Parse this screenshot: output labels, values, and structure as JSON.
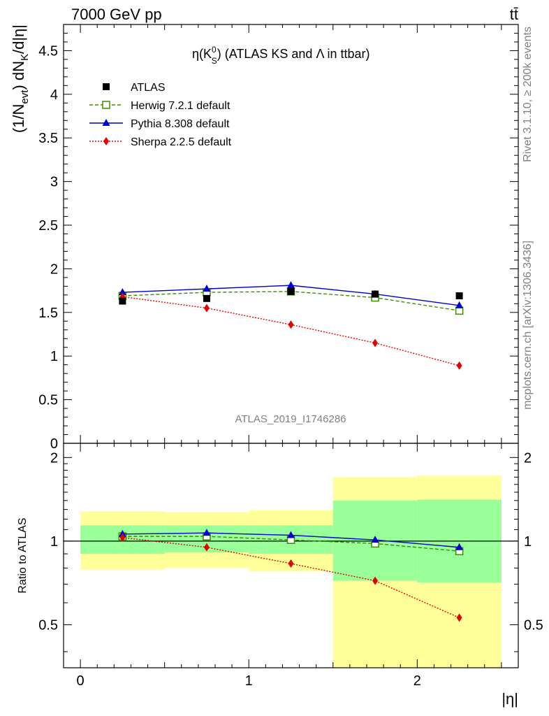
{
  "header": {
    "left": "7000 GeV pp",
    "right": "tt̄"
  },
  "side_labels": {
    "rivet": "Rivet 3.1.10, ≥ 200k events",
    "mcplots": "mcplots.cern.ch [arXiv:1306.3436]"
  },
  "chart_data": [
    {
      "type": "line",
      "title": "η(K⁰S) (ATLAS KS and Λ in ttbar)",
      "title_parts": {
        "pre": "η(K",
        "sup": "0",
        "sub": "S",
        "post": ") (ATLAS KS and Λ in ttbar)"
      },
      "ylabel": "(1/N_evt) dN_K/d|η|",
      "ylabel_parts": {
        "a": "(1/N",
        "a_sub": "evt",
        "b": ") dN",
        "b_sub": "K",
        "c": "/d|η|"
      },
      "xlabel": "",
      "analysis_tag": "ATLAS_2019_I1746286",
      "xlim": [
        -0.1,
        2.6
      ],
      "ylim": [
        0,
        4.8
      ],
      "yticks": [
        "0",
        "0.5",
        "1",
        "1.5",
        "2",
        "2.5",
        "3",
        "3.5",
        "4",
        "4.5"
      ],
      "yticks_values": [
        0,
        0.5,
        1,
        1.5,
        2,
        2.5,
        3,
        3.5,
        4,
        4.5
      ],
      "x": [
        0.25,
        0.75,
        1.25,
        1.75,
        2.25
      ],
      "series": [
        {
          "name": "ATLAS",
          "values": [
            1.63,
            1.66,
            1.74,
            1.71,
            1.69
          ],
          "color": "#000000",
          "marker": "square"
        },
        {
          "name": "Herwig 7.2.1 default",
          "values": [
            1.69,
            1.73,
            1.74,
            1.67,
            1.52
          ],
          "color": "#3a8f00",
          "marker": "open-square",
          "dash": "dashed"
        },
        {
          "name": "Pythia 8.308 default",
          "values": [
            1.73,
            1.77,
            1.81,
            1.71,
            1.58
          ],
          "color": "#0000cc",
          "marker": "triangle",
          "dash": "solid"
        },
        {
          "name": "Sherpa 2.2.5 default",
          "values": [
            1.68,
            1.55,
            1.36,
            1.15,
            0.89
          ],
          "color": "#e60000",
          "marker": "diamond",
          "dash": "dotted"
        }
      ],
      "legend_position": "top-left"
    },
    {
      "type": "line",
      "ylabel": "Ratio to ATLAS",
      "xlabel": "|η|",
      "xlim": [
        -0.1,
        2.6
      ],
      "ylim": [
        0.35,
        2.25
      ],
      "log_y": true,
      "yticks": [
        "0.5",
        "1",
        "2"
      ],
      "yticks_values": [
        0.5,
        1,
        2
      ],
      "xticks": [
        "0",
        "1",
        "2"
      ],
      "xticks_values": [
        0,
        1,
        2
      ],
      "x": [
        0.25,
        0.75,
        1.25,
        1.75,
        2.25
      ],
      "bins": [
        [
          0,
          0.5
        ],
        [
          0.5,
          1.0
        ],
        [
          1.0,
          1.5
        ],
        [
          1.5,
          2.0
        ],
        [
          2.0,
          2.5
        ]
      ],
      "band_inner": [
        [
          0.9,
          1.14
        ],
        [
          0.91,
          1.14
        ],
        [
          0.9,
          1.14
        ],
        [
          0.72,
          1.4
        ],
        [
          0.71,
          1.41
        ]
      ],
      "band_outer": [
        [
          0.79,
          1.28
        ],
        [
          0.8,
          1.27
        ],
        [
          0.78,
          1.29
        ],
        [
          0.35,
          1.7
        ],
        [
          0.35,
          1.72
        ]
      ],
      "band_colors": {
        "inner": "#99ff99",
        "outer": "#ffff99"
      },
      "series": [
        {
          "name": "Herwig 7.2.1 default",
          "values": [
            1.04,
            1.04,
            1.01,
            0.98,
            0.92
          ],
          "color": "#3a8f00",
          "marker": "open-square",
          "dash": "dashed"
        },
        {
          "name": "Pythia 8.308 default",
          "values": [
            1.06,
            1.07,
            1.05,
            1.01,
            0.95
          ],
          "color": "#0000cc",
          "marker": "triangle",
          "dash": "solid"
        },
        {
          "name": "Sherpa 2.2.5 default",
          "values": [
            1.03,
            0.95,
            0.83,
            0.72,
            0.53
          ],
          "color": "#e60000",
          "marker": "diamond",
          "dash": "dotted"
        }
      ]
    }
  ]
}
